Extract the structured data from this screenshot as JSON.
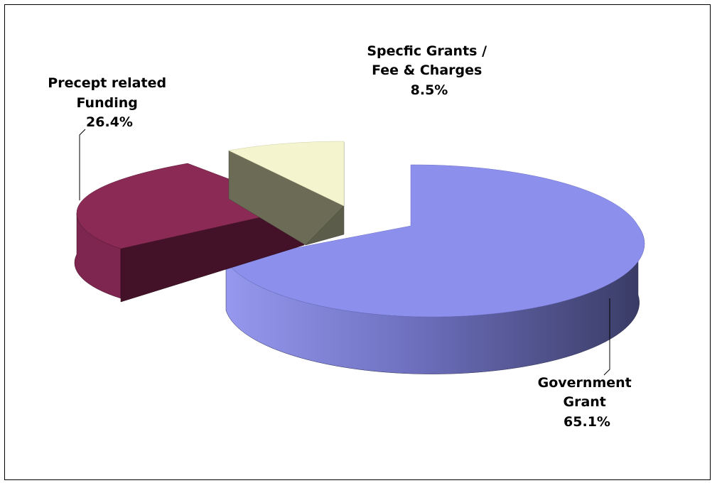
{
  "chart_data": {
    "type": "pie",
    "style": "3d-exploded",
    "title": "",
    "legend": "none",
    "slices": [
      {
        "label_lines": [
          "Government",
          "Grant"
        ],
        "value": 65.1,
        "value_label": "65.1%",
        "color": "#8C8FEB",
        "side_color": "#3A3C66"
      },
      {
        "label_lines": [
          "Precept related",
          "Funding"
        ],
        "value": 26.4,
        "value_label": "26.4%",
        "color": "#8B2B55",
        "side_color": "#431228"
      },
      {
        "label_lines": [
          "Specfic Grants /",
          "Fee & Charges"
        ],
        "value": 8.5,
        "value_label": "8.5%",
        "color": "#F4F4CE",
        "side_color": "#6B6B56"
      }
    ]
  }
}
